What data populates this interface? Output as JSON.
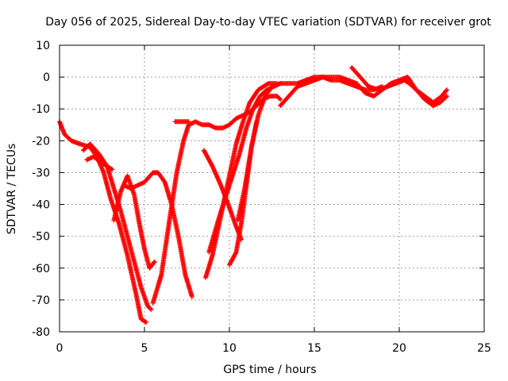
{
  "chart_data": {
    "type": "scatter",
    "title": "Day 056 of 2025, Sidereal Day-to-day VTEC variation (SDTVAR) for receiver grot",
    "xlabel": "GPS time / hours",
    "ylabel": "SDTVAR / TECUs",
    "xlim": [
      0,
      25
    ],
    "ylim": [
      -80,
      10
    ],
    "xticks": [
      "0",
      "5",
      "10",
      "15",
      "20",
      "25"
    ],
    "yticks": [
      "10",
      "0",
      "-10",
      "-20",
      "-30",
      "-40",
      "-50",
      "-60",
      "-70",
      "-80"
    ],
    "grid": true,
    "legend": "none",
    "marker": "plus",
    "color": "#ff0000",
    "series": [
      {
        "x": [
          0.0,
          0.3,
          0.7,
          1.2,
          1.8,
          2.2,
          2.6,
          3.0,
          3.5,
          4.0,
          4.5,
          4.8,
          5.1
        ],
        "y": [
          -14,
          -18,
          -20,
          -21,
          -22,
          -25,
          -30,
          -38,
          -46,
          -56,
          -68,
          -76,
          -77
        ]
      },
      {
        "x": [
          1.4,
          1.8,
          2.3,
          2.8,
          3.2,
          3.6,
          4.0,
          4.4,
          4.8,
          5.2,
          5.4
        ],
        "y": [
          -23,
          -21,
          -24,
          -28,
          -35,
          -42,
          -50,
          -58,
          -66,
          -72,
          -73
        ]
      },
      {
        "x": [
          1.6,
          2.0,
          2.5,
          3.1
        ],
        "y": [
          -26,
          -25,
          -27,
          -29
        ]
      },
      {
        "x": [
          3.2,
          3.6,
          4.0,
          4.4,
          4.7,
          5.0,
          5.3,
          5.6
        ],
        "y": [
          -45,
          -36,
          -31,
          -37,
          -46,
          -54,
          -60,
          -58
        ]
      },
      {
        "x": [
          3.8,
          4.2,
          4.6,
          5.0,
          5.5,
          5.8,
          6.2,
          6.6,
          7.0,
          7.4,
          7.8
        ],
        "y": [
          -34,
          -35,
          -34,
          -33,
          -30,
          -30,
          -33,
          -40,
          -50,
          -62,
          -69
        ]
      },
      {
        "x": [
          5.5,
          6.0,
          6.5,
          6.9,
          7.3,
          7.6,
          8.0,
          8.4,
          8.8,
          9.2,
          9.6,
          10.0,
          10.4,
          10.8,
          11.2,
          11.6,
          12.0,
          12.4,
          12.8,
          13.0
        ],
        "y": [
          -71,
          -62,
          -44,
          -30,
          -20,
          -15,
          -14,
          -15,
          -15,
          -16,
          -16,
          -15,
          -13,
          -12,
          -11,
          -9,
          -7,
          -6,
          -6,
          -7
        ]
      },
      {
        "x": [
          6.8,
          7.2,
          7.6
        ],
        "y": [
          -14,
          -14,
          -14
        ]
      },
      {
        "x": [
          8.6,
          9.0,
          9.6,
          10.0,
          10.4,
          10.8,
          11.2,
          11.7,
          12.3,
          12.8
        ],
        "y": [
          -63,
          -56,
          -41,
          -31,
          -21,
          -14,
          -8,
          -4,
          -2,
          -2
        ]
      },
      {
        "x": [
          8.8,
          9.4,
          10.0,
          10.6,
          11.0,
          11.4,
          11.8,
          12.2,
          12.6,
          13.0
        ],
        "y": [
          -55,
          -44,
          -34,
          -24,
          -16,
          -10,
          -6,
          -4,
          -3,
          -2
        ]
      },
      {
        "x": [
          8.5,
          9.0,
          9.5,
          10.0,
          10.4,
          10.7
        ],
        "y": [
          -23,
          -28,
          -34,
          -41,
          -47,
          -51
        ]
      },
      {
        "x": [
          10.0,
          10.4,
          10.7,
          11.0,
          11.3,
          11.6
        ],
        "y": [
          -59,
          -55,
          -46,
          -34,
          -22,
          -14
        ]
      },
      {
        "x": [
          10.5,
          10.9,
          11.3,
          11.7,
          12.1,
          12.5,
          13.0,
          13.5,
          14.0,
          14.5,
          15.0,
          15.5,
          16.0,
          16.5,
          17.0,
          17.5,
          18.0,
          18.5,
          19.0
        ],
        "y": [
          -45,
          -35,
          -22,
          -12,
          -6,
          -3,
          -2,
          -2,
          -2,
          -1,
          0,
          0,
          -1,
          -1,
          -2,
          -3,
          -4,
          -4,
          -3
        ]
      },
      {
        "x": [
          13.0,
          13.5,
          14.0,
          14.5,
          15.0,
          15.5,
          16.0,
          16.5,
          17.0,
          17.5,
          18.0,
          18.5,
          19.0,
          19.5,
          20.0,
          20.5,
          21.0,
          21.5,
          22.0,
          22.4,
          22.8
        ],
        "y": [
          -9,
          -6,
          -3,
          -2,
          -1,
          0,
          0,
          0,
          -1,
          -2,
          -5,
          -6,
          -4,
          -2,
          -1,
          0,
          -4,
          -7,
          -9,
          -8,
          -6
        ]
      },
      {
        "x": [
          17.2,
          17.7,
          18.2,
          18.8,
          19.3,
          19.8,
          20.3,
          20.6,
          21.0,
          21.5,
          22.0,
          22.5,
          22.8
        ],
        "y": [
          3,
          0,
          -3,
          -4,
          -3,
          -2,
          -1,
          -2,
          -4,
          -6,
          -8,
          -6,
          -4
        ]
      }
    ]
  }
}
